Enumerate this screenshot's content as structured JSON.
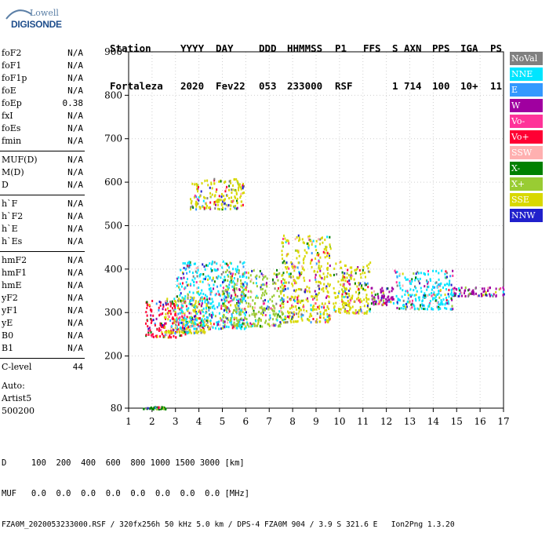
{
  "logo": {
    "line1": "Lowell",
    "line2": "DIGISONDE"
  },
  "header": {
    "row1": [
      "Station",
      "YYYY",
      "DAY",
      "DDD",
      "HHMMSS",
      "P1",
      "FFS",
      "S",
      "AXN",
      "PPS",
      "IGA",
      "PS"
    ],
    "row2": [
      "Fortaleza",
      "2020",
      "Fev22",
      "053",
      "233000",
      "RSF",
      "",
      "1",
      "714",
      "100",
      "10+",
      "11"
    ]
  },
  "params_group1": [
    {
      "label": "foF2",
      "value": "N/A"
    },
    {
      "label": "foF1",
      "value": "N/A"
    },
    {
      "label": "foF1p",
      "value": "N/A"
    },
    {
      "label": "foE",
      "value": "N/A"
    },
    {
      "label": "foEp",
      "value": "0.38"
    },
    {
      "label": "fxI",
      "value": "N/A"
    },
    {
      "label": "foEs",
      "value": "N/A"
    },
    {
      "label": "fmin",
      "value": "N/A"
    }
  ],
  "params_group2": [
    {
      "label": "MUF(D)",
      "value": "N/A"
    },
    {
      "label": "M(D)",
      "value": "N/A"
    },
    {
      "label": "D",
      "value": "N/A"
    }
  ],
  "params_group3": [
    {
      "label": "h`F",
      "value": "N/A"
    },
    {
      "label": "h`F2",
      "value": "N/A"
    },
    {
      "label": "h`E",
      "value": "N/A"
    },
    {
      "label": "h`Es",
      "value": "N/A"
    }
  ],
  "params_group4": [
    {
      "label": "hmF2",
      "value": "N/A"
    },
    {
      "label": "hmF1",
      "value": "N/A"
    },
    {
      "label": "hmE",
      "value": "N/A"
    },
    {
      "label": "yF2",
      "value": "N/A"
    },
    {
      "label": "yF1",
      "value": "N/A"
    },
    {
      "label": "yE",
      "value": "N/A"
    },
    {
      "label": "B0",
      "value": "N/A"
    },
    {
      "label": "B1",
      "value": "N/A"
    }
  ],
  "params_group5": [
    {
      "label": "C-level",
      "value": "44"
    }
  ],
  "auto": {
    "line1": "Auto:",
    "line2": "Artist5",
    "line3": "500200"
  },
  "footer": {
    "d_row": "D     100  200  400  600  800 1000 1500 3000 [km]",
    "muf_row": "MUF   0.0  0.0  0.0  0.0  0.0  0.0  0.0  0.0 [MHz]",
    "file_row": "FZA0M_2020053233000.RSF / 320fx256h 50 kHz 5.0 km / DPS-4 FZA0M 904 / 3.9 S 321.6 E   Ion2Png 1.3.20"
  },
  "legend": [
    {
      "label": "NoVal",
      "color": "#808080"
    },
    {
      "label": "NNE",
      "color": "#00e5ff"
    },
    {
      "label": "E",
      "color": "#3399ff"
    },
    {
      "label": "W",
      "color": "#a000a0"
    },
    {
      "label": "Vo-",
      "color": "#ff3399"
    },
    {
      "label": "Vo+",
      "color": "#ff0033"
    },
    {
      "label": "SSW",
      "color": "#ffb0b0"
    },
    {
      "label": "X-",
      "color": "#008000"
    },
    {
      "label": "X+",
      "color": "#99cc33"
    },
    {
      "label": "SSE",
      "color": "#d8d800"
    },
    {
      "label": "NNW",
      "color": "#2020cc"
    }
  ],
  "chart_data": {
    "type": "scatter",
    "title": "",
    "xlabel": "",
    "ylabel": "",
    "xlim": [
      1,
      17
    ],
    "ylim": [
      80,
      900
    ],
    "x_ticks": [
      "1",
      "2",
      "3",
      "4",
      "5",
      "6",
      "7",
      "8",
      "9",
      "10",
      "11",
      "12",
      "13",
      "14",
      "15",
      "16",
      "17"
    ],
    "y_ticks": [
      "80",
      "200",
      "300",
      "400",
      "500",
      "600",
      "700",
      "800",
      "900"
    ],
    "grid": true,
    "legend_position": "right",
    "clusters": [
      {
        "freq_range": [
          1.6,
          2.6
        ],
        "height_range": [
          80,
          85
        ],
        "dominant": "X-"
      },
      {
        "freq_range": [
          1.7,
          3.5
        ],
        "height_range": [
          245,
          330
        ],
        "dominant": "Vo+"
      },
      {
        "freq_range": [
          2.5,
          4.5
        ],
        "height_range": [
          255,
          340
        ],
        "dominant": "SSE"
      },
      {
        "freq_range": [
          3.6,
          5.9
        ],
        "height_range": [
          540,
          610
        ],
        "dominant": "SSE"
      },
      {
        "freq_range": [
          3.0,
          6.0
        ],
        "height_range": [
          265,
          420
        ],
        "dominant": "NNE"
      },
      {
        "freq_range": [
          5.0,
          7.6
        ],
        "height_range": [
          270,
          400
        ],
        "dominant": "X+"
      },
      {
        "freq_range": [
          7.5,
          9.6
        ],
        "height_range": [
          280,
          480
        ],
        "dominant": "SSE"
      },
      {
        "freq_range": [
          9.7,
          11.3
        ],
        "height_range": [
          300,
          420
        ],
        "dominant": "SSE"
      },
      {
        "freq_range": [
          11.3,
          12.3
        ],
        "height_range": [
          320,
          360
        ],
        "dominant": "W"
      },
      {
        "freq_range": [
          12.3,
          14.8
        ],
        "height_range": [
          310,
          400
        ],
        "dominant": "NNE"
      },
      {
        "freq_range": [
          14.8,
          17.0
        ],
        "height_range": [
          340,
          360
        ],
        "dominant": "W"
      }
    ]
  }
}
